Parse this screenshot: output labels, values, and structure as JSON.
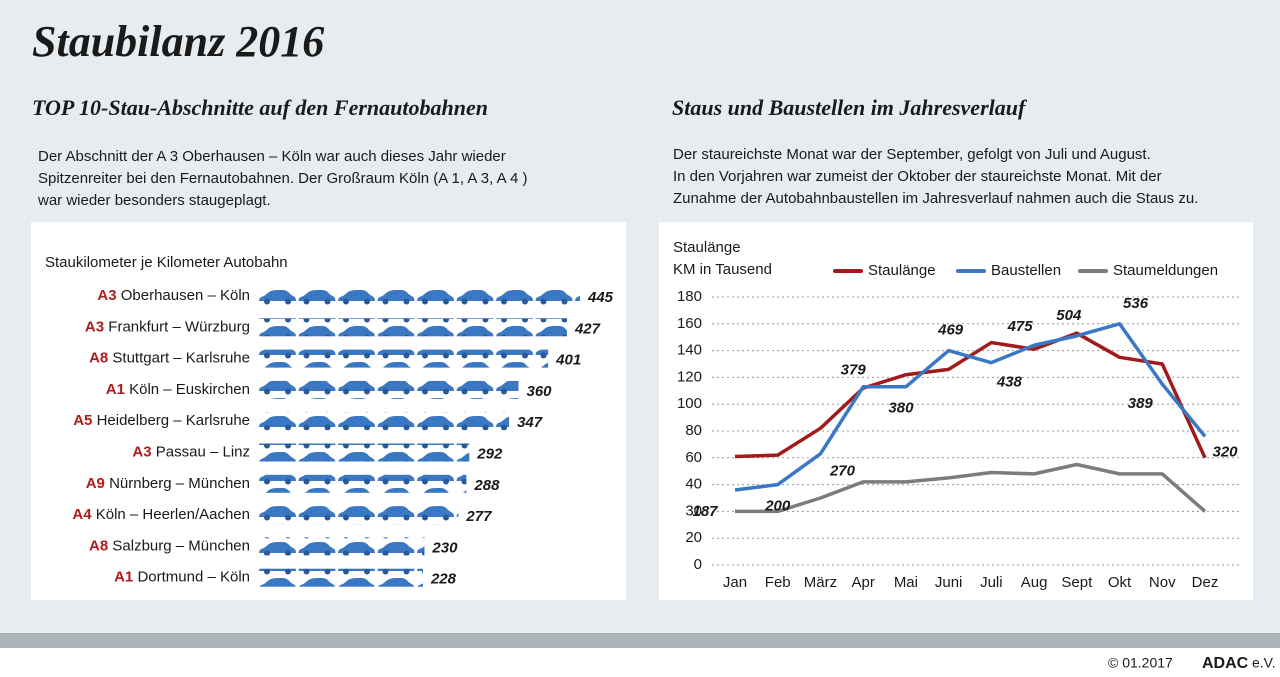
{
  "header": {
    "title": "Staubilanz 2016"
  },
  "footer": {
    "copyright": "© 01.2017",
    "brand": "ADAC",
    "suffix": "e.V."
  },
  "chart_data": [
    {
      "type": "bar",
      "orientation": "horizontal",
      "subtitle": "TOP 10-Stau-Abschnitte auf den Fernautobahnen",
      "description": [
        "Der Abschnitt der A 3 Oberhausen – Köln war auch dieses Jahr wieder",
        "Spitzenreiter bei den Fernautobahnen. Der Großraum Köln (A 1, A 3, A 4 )",
        "war wieder besonders staugeplagt."
      ],
      "title": "Staukilometer je Kilometer Autobahn",
      "roads": [
        "A3",
        "A3",
        "A8",
        "A1",
        "A5",
        "A3",
        "A9",
        "A4",
        "A8",
        "A1"
      ],
      "categories": [
        "Oberhausen – Köln",
        "Frankfurt – Würzburg",
        "Stuttgart – Karlsruhe",
        "Köln – Euskirchen",
        "Heidelberg – Karlsruhe",
        "Passau – Linz",
        "Nürnberg – München",
        "Köln – Heerlen/Aachen",
        "Salzburg – München",
        "Dortmund – Köln"
      ],
      "values": [
        445,
        427,
        401,
        360,
        347,
        292,
        288,
        277,
        230,
        228
      ],
      "color": "#3b78c3",
      "road_color": "#b01c1c"
    },
    {
      "type": "line",
      "subtitle": "Staus und Baustellen im Jahresverlauf",
      "description": [
        "Der staureichste Monat war der September, gefolgt von Juli und August.",
        "In den Vorjahren war zumeist der Oktober der staureichste Monat. Mit der",
        "Zunahme der Autobahnbaustellen im Jahresverlauf nahmen auch die Staus zu."
      ],
      "ylabel": [
        "Staulänge",
        "KM in Tausend"
      ],
      "categories": [
        "Jan",
        "Feb",
        "März",
        "Apr",
        "Mai",
        "Juni",
        "Juli",
        "Aug",
        "Sept",
        "Okt",
        "Nov",
        "Dez"
      ],
      "ylim": [
        0,
        180
      ],
      "yticks": [
        0,
        20,
        30,
        40,
        60,
        80,
        100,
        120,
        140,
        160,
        180
      ],
      "grid": true,
      "series": [
        {
          "name": "Staulänge",
          "color": "#a31a1a",
          "values": [
            61,
            62,
            82,
            112,
            122,
            126,
            146,
            141,
            153,
            135,
            130,
            60
          ]
        },
        {
          "name": "Baustellen",
          "color": "#3b78c3",
          "values": [
            38,
            40,
            63,
            113,
            113,
            140,
            131,
            144,
            151,
            160,
            115,
            76
          ],
          "counts": [
            187,
            200,
            270,
            379,
            380,
            469,
            438,
            475,
            504,
            536,
            389,
            320
          ]
        },
        {
          "name": "Staumeldungen",
          "color": "#7c7c78",
          "values": [
            30,
            30,
            35,
            42,
            42,
            45,
            49,
            48,
            55,
            48,
            48,
            30
          ]
        }
      ]
    }
  ]
}
